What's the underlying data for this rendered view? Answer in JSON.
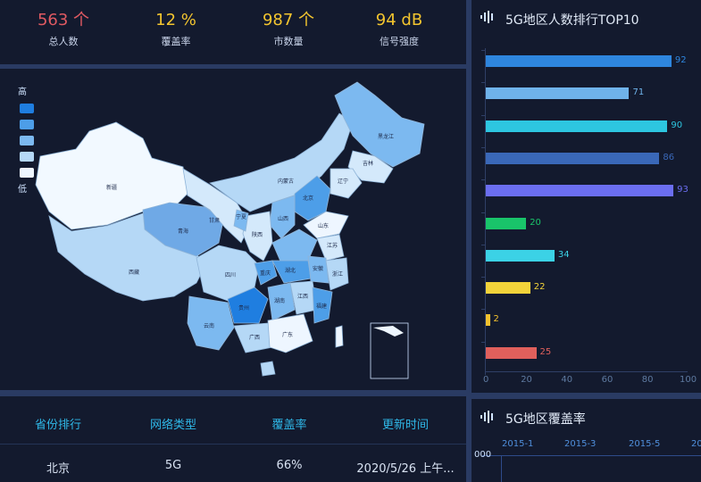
{
  "stats": [
    {
      "value": "563 个",
      "label": "总人数",
      "color": "#e05a62"
    },
    {
      "value": "12 %",
      "label": "覆盖率",
      "color": "#f3c52f"
    },
    {
      "value": "987 个",
      "label": "市数量",
      "color": "#f3c52f"
    },
    {
      "value": "94 dB",
      "label": "信号强度",
      "color": "#f3c52f"
    }
  ],
  "map": {
    "legend_high": "高",
    "legend_low": "低",
    "legend_colors": [
      "#1f7ee0",
      "#4d9ee8",
      "#7cb9f0",
      "#b5d8f6",
      "#eef6ff"
    ],
    "provinces": [
      "新疆",
      "西藏",
      "青海",
      "甘肃",
      "内蒙古",
      "黑龙江",
      "吉林",
      "辽宁",
      "北京",
      "宁夏",
      "陕西",
      "山西",
      "山东",
      "四川",
      "重庆",
      "湖北",
      "安徽",
      "江苏",
      "贵州",
      "湖南",
      "江西",
      "浙江",
      "云南",
      "广西",
      "广东",
      "福建"
    ]
  },
  "table": {
    "headers": [
      "省份排行",
      "网络类型",
      "覆盖率",
      "更新时间"
    ],
    "rows": [
      [
        "北京",
        "5G",
        "66%",
        "2020/5/26 上午..."
      ]
    ]
  },
  "right_top": {
    "title": "5G地区人数排行TOP10",
    "icon": "signal-wave-icon"
  },
  "right_bottom": {
    "title": "5G地区覆盖率",
    "icon": "signal-wave-icon",
    "x_ticks": [
      "2015-1",
      "2015-3",
      "2015-5",
      "20"
    ],
    "y_tick": "000"
  },
  "chart_data": {
    "type": "bar",
    "orientation": "horizontal",
    "title": "5G地区人数排行TOP10",
    "values": [
      92,
      71,
      90,
      86,
      93,
      20,
      34,
      22,
      2,
      25
    ],
    "colors": [
      "#2e86de",
      "#6fb3ea",
      "#2dc6e0",
      "#3a68b8",
      "#6b6ef0",
      "#19c46a",
      "#3bd2e6",
      "#f2d33a",
      "#f2c12e",
      "#e0605c"
    ],
    "xlim": [
      0,
      100
    ],
    "x_ticks": [
      0,
      20,
      40,
      60,
      80,
      100
    ]
  }
}
